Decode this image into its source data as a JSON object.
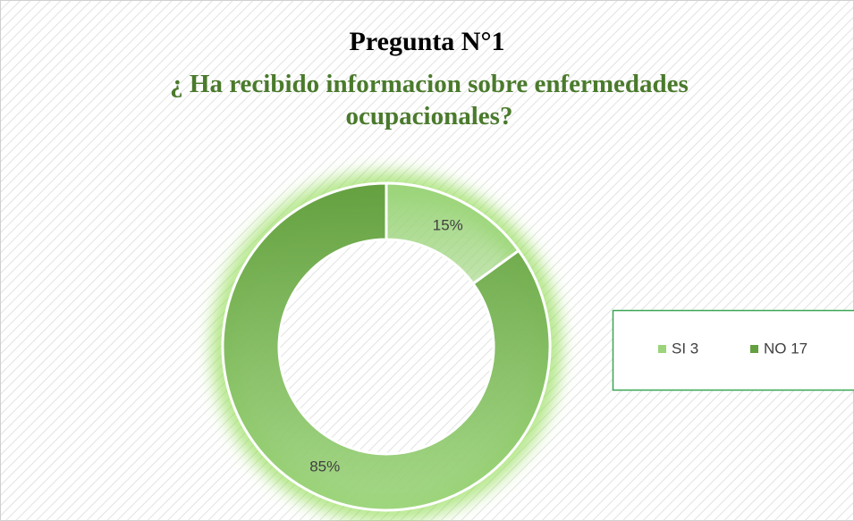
{
  "chart_data": {
    "type": "donut",
    "title": "Pregunta N°1",
    "subtitle": "¿ Ha recibido informacion sobre enfermedades ocupacionales?",
    "categories": [
      "SI 3",
      "NO 17"
    ],
    "values": [
      15,
      85
    ],
    "value_labels": [
      "15%",
      "85%"
    ],
    "colors": [
      "#9bd47a",
      "#64a040"
    ],
    "legend": "right"
  }
}
